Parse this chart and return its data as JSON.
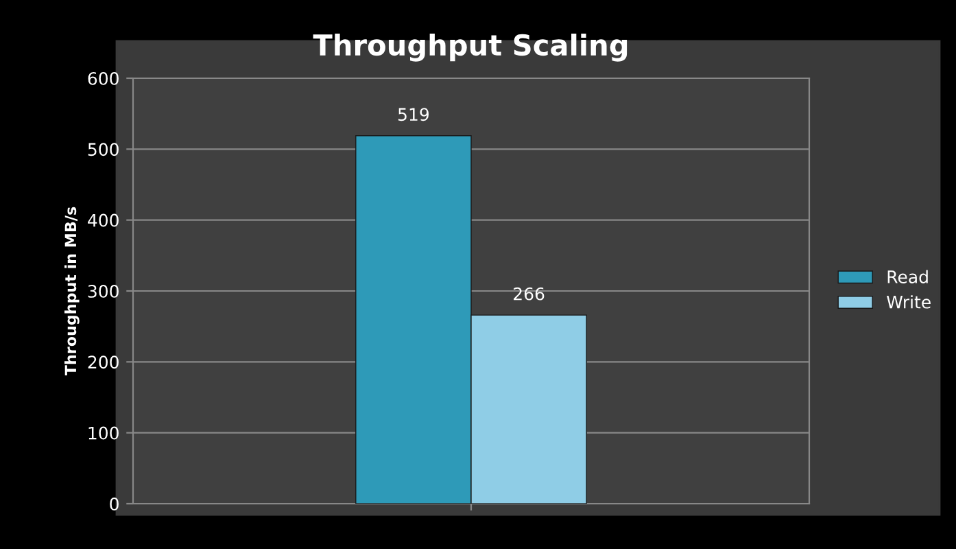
{
  "chart_data": {
    "type": "bar",
    "title": "Throughput Scaling",
    "ylabel": "Throughput in MB/s",
    "categories": [
      null
    ],
    "series": [
      {
        "name": "Read",
        "color": "#2e9ab8",
        "values": [
          519
        ]
      },
      {
        "name": "Write",
        "color": "#8fcde6",
        "values": [
          266
        ]
      }
    ],
    "ylim": [
      0,
      600
    ],
    "yticks": [
      0,
      100,
      200,
      300,
      400,
      500,
      600
    ],
    "grid": "y",
    "legend": "right",
    "data_labels": true
  }
}
